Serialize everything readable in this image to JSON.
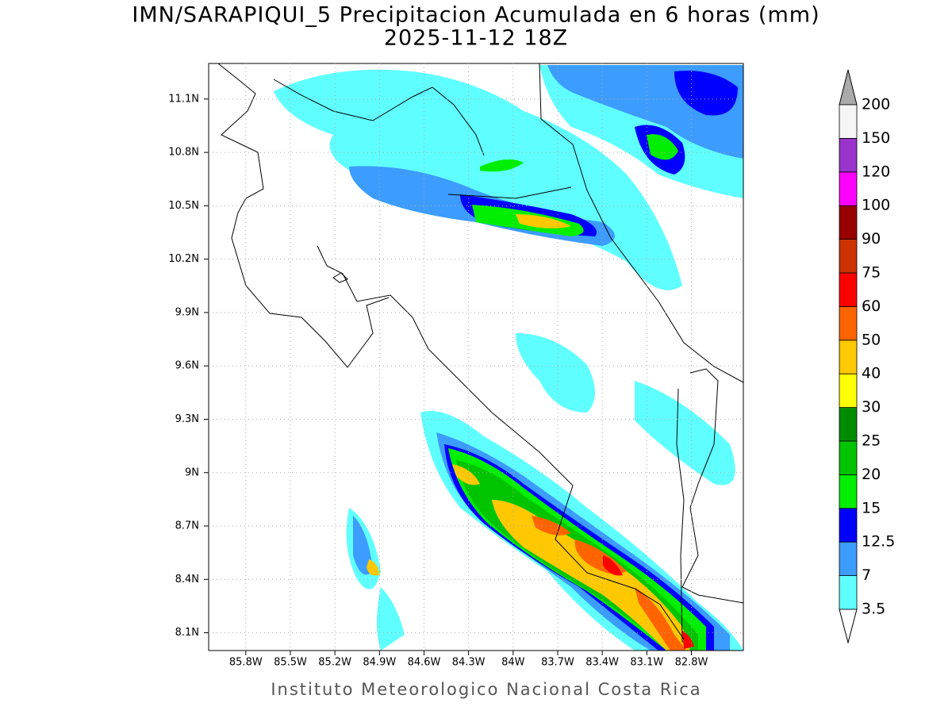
{
  "chart_data": {
    "type": "map",
    "title": "IMN/SARAPIQUI_5 Precipitacion Acumulada en 6 horas (mm)",
    "subtitle": "2025-11-12 18Z",
    "footer": "Instituto Meteorologico Nacional Costa Rica",
    "xlim": [
      -86.05,
      -82.45
    ],
    "ylim": [
      8.0,
      11.3
    ],
    "xticks": [
      {
        "value": -85.8,
        "label": "85.8W"
      },
      {
        "value": -85.5,
        "label": "85.5W"
      },
      {
        "value": -85.2,
        "label": "85.2W"
      },
      {
        "value": -84.9,
        "label": "84.9W"
      },
      {
        "value": -84.6,
        "label": "84.6W"
      },
      {
        "value": -84.3,
        "label": "84.3W"
      },
      {
        "value": -84.0,
        "label": "84W"
      },
      {
        "value": -83.7,
        "label": "83.7W"
      },
      {
        "value": -83.4,
        "label": "83.4W"
      },
      {
        "value": -83.1,
        "label": "83.1W"
      },
      {
        "value": -82.8,
        "label": "82.8W"
      }
    ],
    "yticks": [
      {
        "value": 8.1,
        "label": "8.1N"
      },
      {
        "value": 8.4,
        "label": "8.4N"
      },
      {
        "value": 8.7,
        "label": "8.7N"
      },
      {
        "value": 9.0,
        "label": "9N"
      },
      {
        "value": 9.3,
        "label": "9.3N"
      },
      {
        "value": 9.6,
        "label": "9.6N"
      },
      {
        "value": 9.9,
        "label": "9.9N"
      },
      {
        "value": 10.2,
        "label": "10.2N"
      },
      {
        "value": 10.5,
        "label": "10.5N"
      },
      {
        "value": 10.8,
        "label": "10.8N"
      },
      {
        "value": 11.1,
        "label": "11.1N"
      }
    ],
    "grid": true,
    "colorbar": {
      "levels": [
        3.5,
        7,
        12.5,
        15,
        20,
        25,
        30,
        40,
        50,
        60,
        75,
        90,
        100,
        120,
        150,
        200
      ],
      "colors": [
        "#60ffff",
        "#3c9cff",
        "#0000ff",
        "#00ee00",
        "#00c400",
        "#008c00",
        "#ffff00",
        "#ffc800",
        "#ff6400",
        "#ff0000",
        "#cc3300",
        "#990000",
        "#ff00ff",
        "#9933cc",
        "#f5f5f5"
      ],
      "under_color": "#ffffff",
      "over_color": "#aaaaaa"
    }
  }
}
